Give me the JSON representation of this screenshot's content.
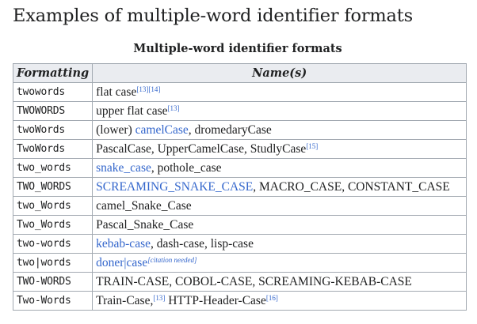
{
  "page": {
    "title": "Examples of multiple-word identifier formats"
  },
  "table": {
    "caption": "Multiple-word identifier formats",
    "headers": {
      "formatting": "Formatting",
      "names": "Name(s)"
    },
    "rows": [
      {
        "format": "twowords",
        "names": [
          {
            "text": "flat case"
          },
          {
            "text": "[13][14]",
            "type": "ref"
          }
        ]
      },
      {
        "format": "TWOWORDS",
        "names": [
          {
            "text": "upper flat case"
          },
          {
            "text": "[13]",
            "type": "ref"
          }
        ]
      },
      {
        "format": "twoWords",
        "names": [
          {
            "text": "(lower) "
          },
          {
            "text": "camelCase",
            "type": "link"
          },
          {
            "text": ", dromedaryCase"
          }
        ]
      },
      {
        "format": "TwoWords",
        "names": [
          {
            "text": "PascalCase, UpperCamelCase, StudlyCase"
          },
          {
            "text": "[15]",
            "type": "ref"
          }
        ]
      },
      {
        "format": "two_words",
        "names": [
          {
            "text": "snake_case",
            "type": "link"
          },
          {
            "text": ", pothole_case"
          }
        ]
      },
      {
        "format": "TWO_WORDS",
        "names": [
          {
            "text": "SCREAMING_SNAKE_CASE",
            "type": "link"
          },
          {
            "text": ", MACRO_CASE, CONSTANT_CASE"
          }
        ]
      },
      {
        "format": "two_Words",
        "names": [
          {
            "text": "camel_Snake_Case"
          }
        ]
      },
      {
        "format": "Two_Words",
        "names": [
          {
            "text": "Pascal_Snake_Case"
          }
        ]
      },
      {
        "format": "two-words",
        "names": [
          {
            "text": "kebab-case",
            "type": "link"
          },
          {
            "text": ", dash-case, lisp-case"
          }
        ]
      },
      {
        "format": "two|words",
        "names": [
          {
            "text": "doner|case",
            "type": "link"
          },
          {
            "text": "[citation needed]",
            "type": "note"
          }
        ]
      },
      {
        "format": "TWO-WORDS",
        "names": [
          {
            "text": "TRAIN-CASE, COBOL-CASE, SCREAMING-KEBAB-CASE"
          }
        ]
      },
      {
        "format": "Two-Words",
        "names": [
          {
            "text": "Train-Case,"
          },
          {
            "text": "[13]",
            "type": "ref"
          },
          {
            "text": " HTTP-Header-Case"
          },
          {
            "text": "[16]",
            "type": "ref"
          }
        ]
      }
    ]
  }
}
